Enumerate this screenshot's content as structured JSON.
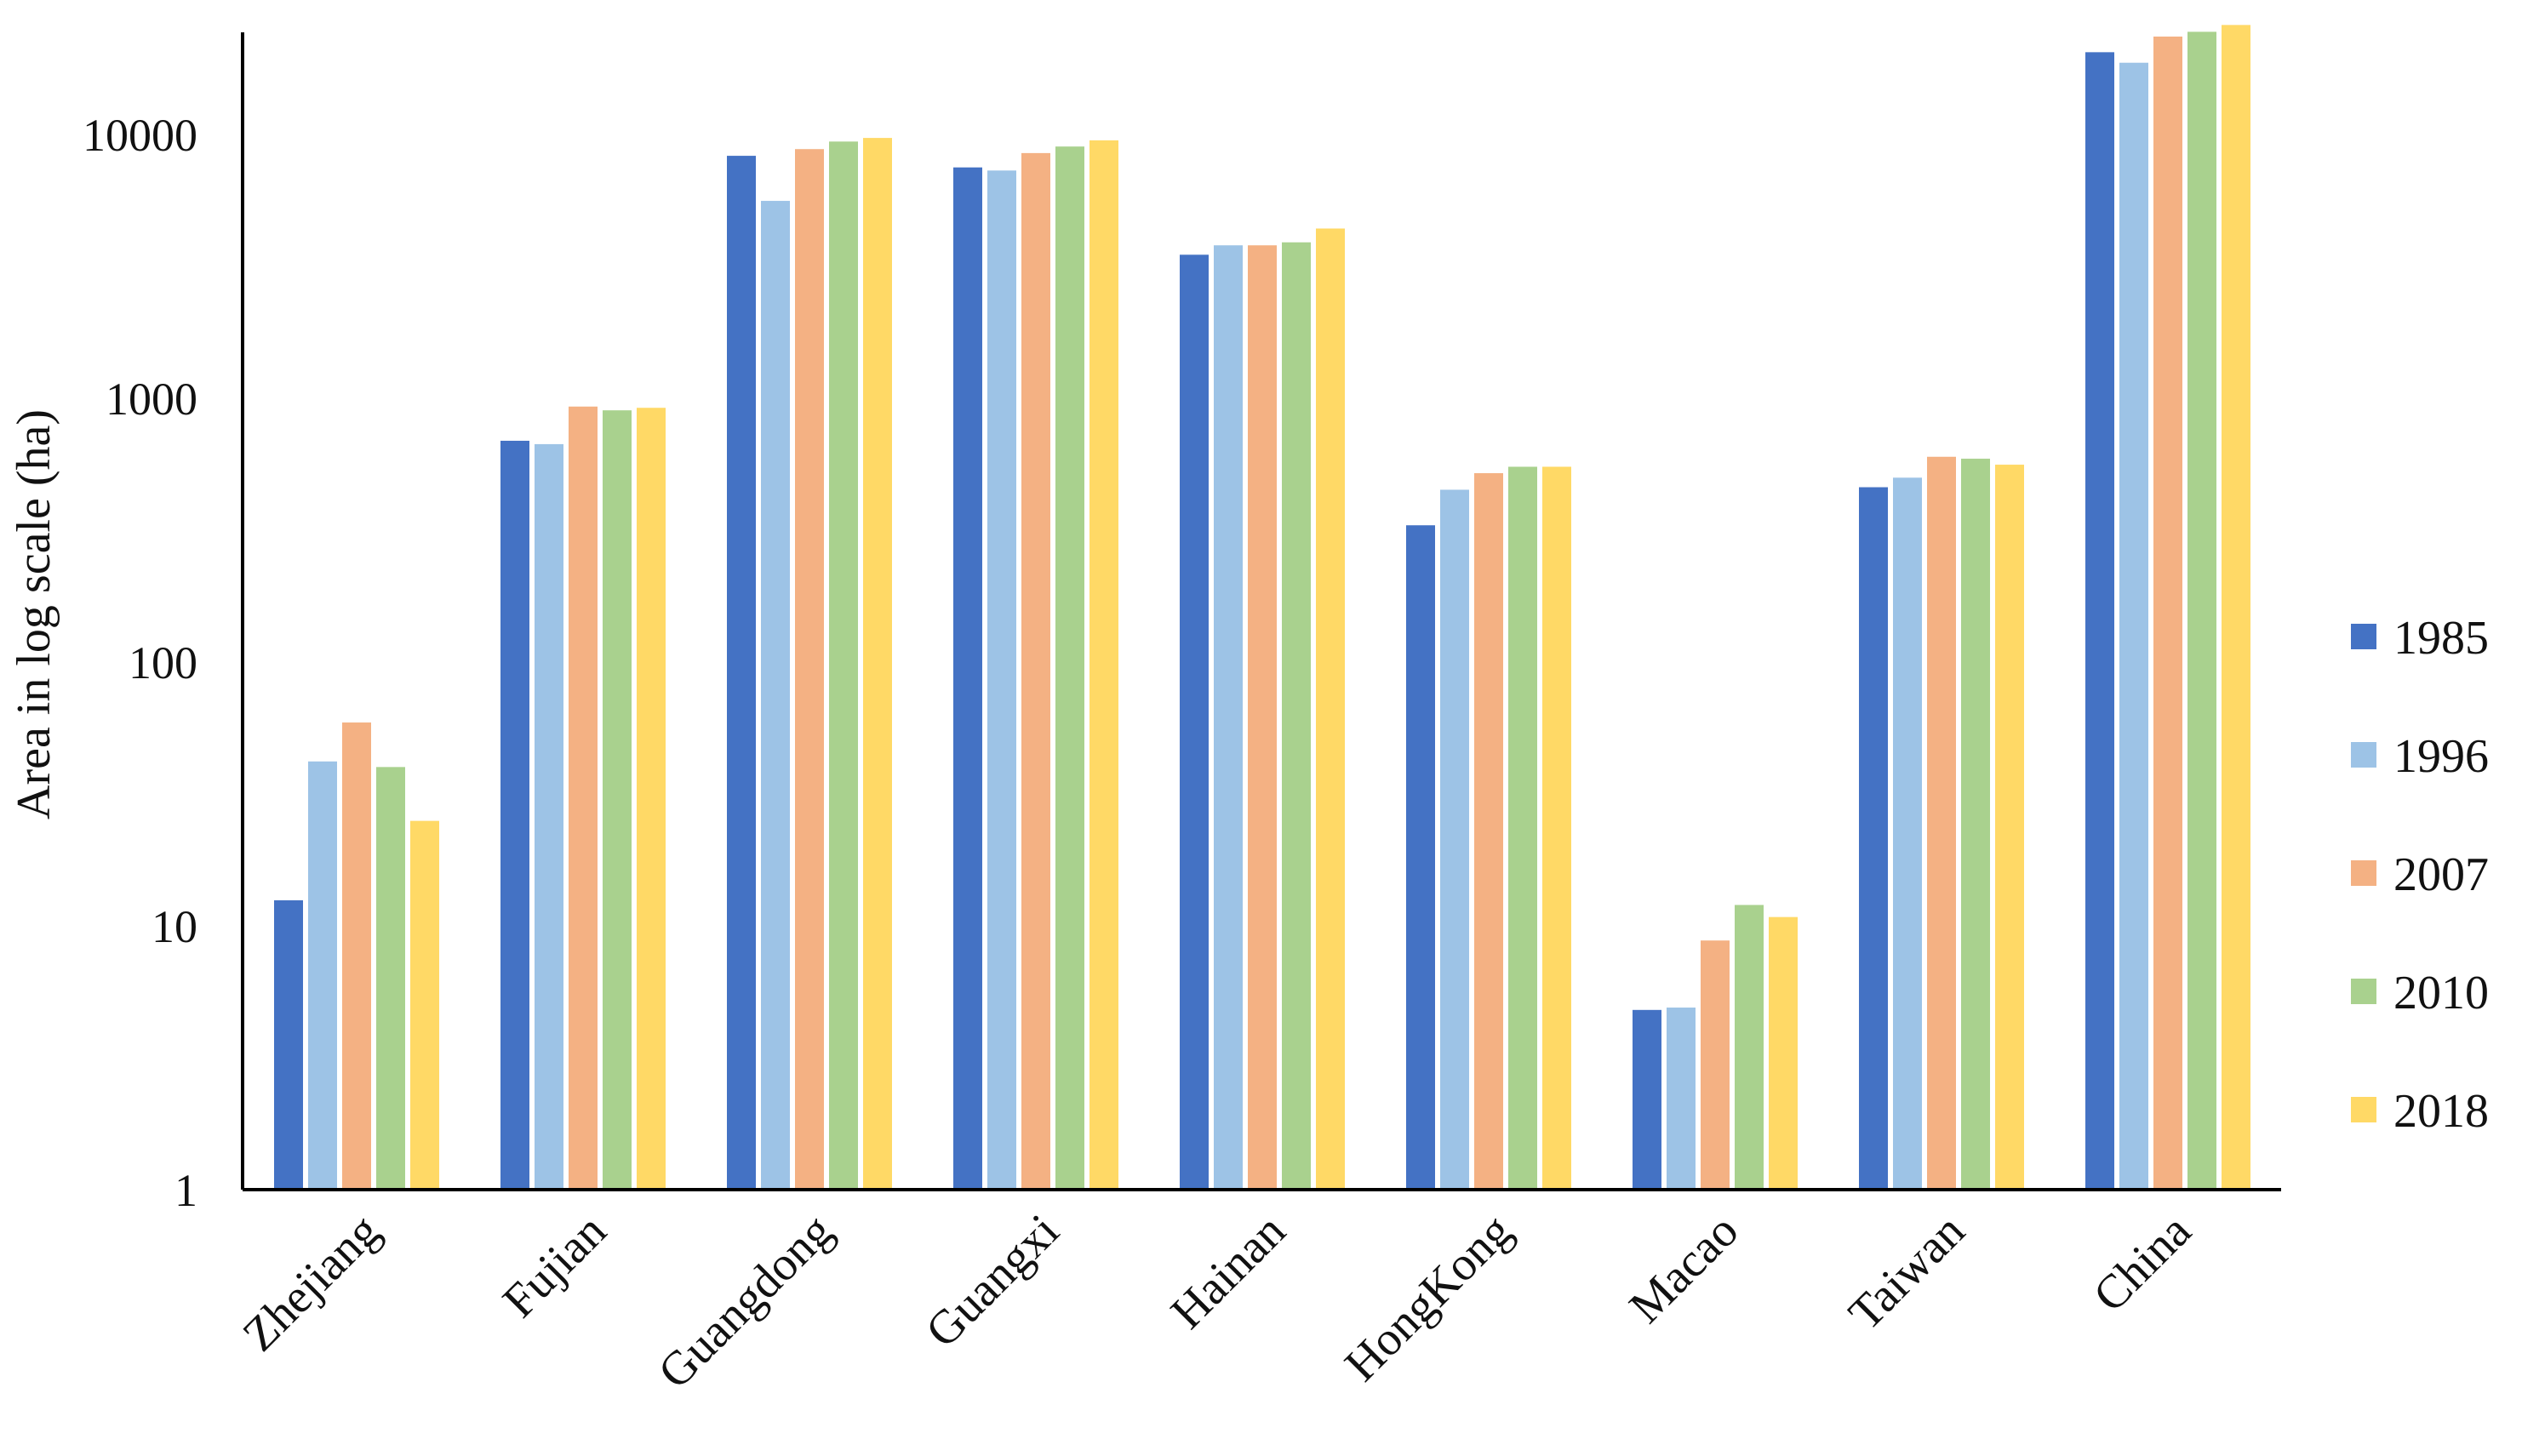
{
  "chart_data": {
    "type": "bar",
    "title": "",
    "xlabel": "",
    "ylabel": "Area in log scale (ha)",
    "yscale": "log",
    "ylim": [
      1,
      25000
    ],
    "yticks": [
      1,
      10,
      100,
      1000,
      10000
    ],
    "ytick_labels": [
      "1",
      "10",
      "100",
      "1000",
      "10000"
    ],
    "grid": false,
    "legend_position": "right",
    "categories": [
      "Zhejiang",
      "Fujian",
      "Guangdong",
      "Guangxi",
      "Hainan",
      "HongKong",
      "Macao",
      "Taiwan",
      "China"
    ],
    "series": [
      {
        "name": "1985",
        "color": "#4472C4",
        "values": [
          12.5,
          690,
          8300,
          7500,
          3500,
          330,
          4.8,
          460,
          20500
        ]
      },
      {
        "name": "1996",
        "color": "#9DC3E6",
        "values": [
          42,
          670,
          5600,
          7300,
          3800,
          450,
          4.9,
          500,
          18700
        ]
      },
      {
        "name": "2007",
        "color": "#F4B183",
        "values": [
          59,
          930,
          8800,
          8500,
          3800,
          520,
          8.8,
          600,
          23500
        ]
      },
      {
        "name": "2010",
        "color": "#A9D18E",
        "values": [
          40,
          900,
          9400,
          9000,
          3900,
          550,
          12,
          590,
          24500
        ]
      },
      {
        "name": "2018",
        "color": "#FFD966",
        "values": [
          25,
          920,
          9700,
          9500,
          4400,
          550,
          10.8,
          560,
          26000
        ]
      }
    ]
  }
}
